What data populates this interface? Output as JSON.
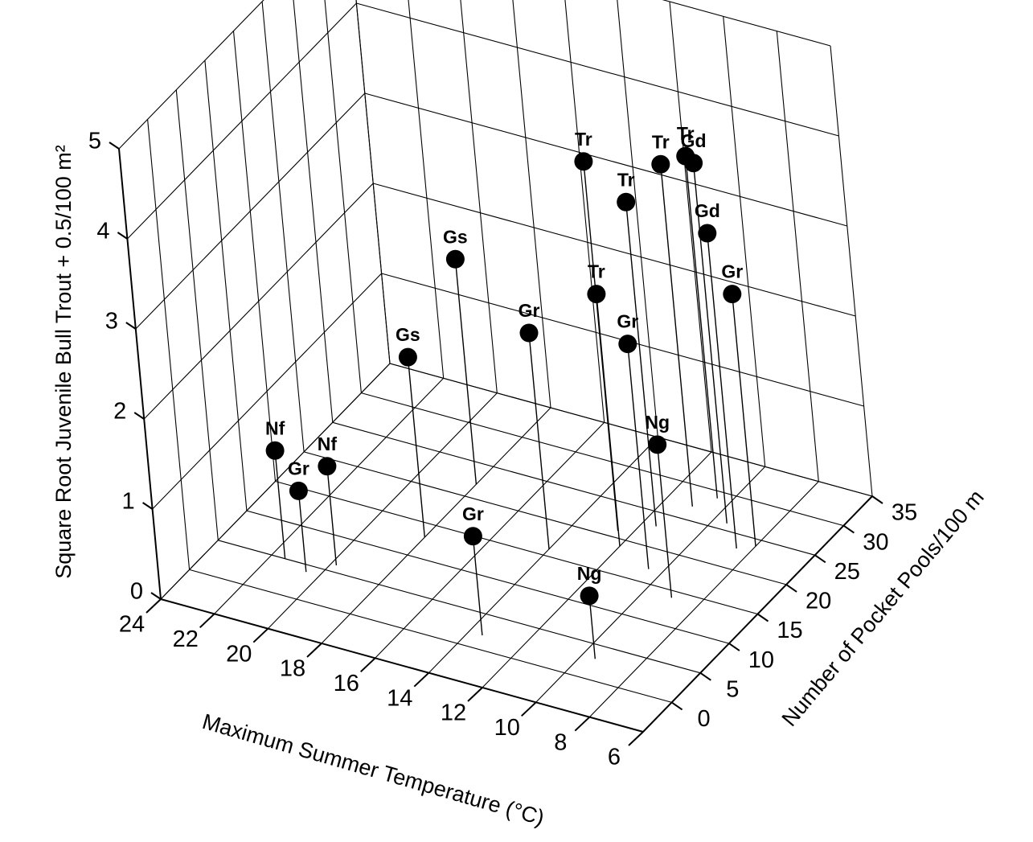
{
  "chart_data": {
    "type": "scatter3d",
    "x_axis": {
      "label": "Maximum Summer Temperature (°C)",
      "range": [
        24,
        6
      ],
      "ticks": [
        24,
        22,
        20,
        18,
        16,
        14,
        12,
        10,
        8,
        6
      ]
    },
    "y_axis": {
      "label": "Number of Pocket Pools/100 m",
      "range": [
        -5,
        35
      ],
      "ticks": [
        0,
        5,
        10,
        15,
        20,
        25,
        30,
        35
      ]
    },
    "z_axis": {
      "label": "Square Root Juvenile Bull Trout + 0.5/100 m²",
      "range": [
        0,
        5
      ],
      "ticks": [
        0,
        1,
        2,
        3,
        4,
        5
      ]
    },
    "grid": true,
    "points": [
      {
        "label": "Nf",
        "temperature": 21.5,
        "pools": 5,
        "density": 1.2
      },
      {
        "label": "Nf",
        "temperature": 19.8,
        "pools": 6,
        "density": 1.1
      },
      {
        "label": "Gr",
        "temperature": 20.5,
        "pools": 4,
        "density": 0.9
      },
      {
        "label": "Gr",
        "temperature": 13.5,
        "pools": 2,
        "density": 1.1
      },
      {
        "label": "Gs",
        "temperature": 18,
        "pools": 13,
        "density": 2.0
      },
      {
        "label": "Gs",
        "temperature": 18,
        "pools": 22,
        "density": 2.5
      },
      {
        "label": "Gr",
        "temperature": 14,
        "pools": 16,
        "density": 2.4
      },
      {
        "label": "Tr",
        "temperature": 12,
        "pools": 19,
        "density": 2.8
      },
      {
        "label": "Tr",
        "temperature": 12.5,
        "pools": 21,
        "density": 4.1
      },
      {
        "label": "Tr",
        "temperature": 11.5,
        "pools": 23,
        "density": 3.6
      },
      {
        "label": "Tr",
        "temperature": 11,
        "pools": 27,
        "density": 3.8
      },
      {
        "label": "Tr",
        "temperature": 10.5,
        "pools": 29,
        "density": 3.8
      },
      {
        "label": "Gd",
        "temperature": 9.5,
        "pools": 26,
        "density": 4.0
      },
      {
        "label": "Gd",
        "temperature": 8.5,
        "pools": 23,
        "density": 3.5
      },
      {
        "label": "Gr",
        "temperature": 8,
        "pools": 24,
        "density": 2.8
      },
      {
        "label": "Gr",
        "temperature": 10.5,
        "pools": 17,
        "density": 2.5
      },
      {
        "label": "Ng",
        "temperature": 9,
        "pools": 14,
        "density": 1.7
      },
      {
        "label": "Ng",
        "temperature": 9.5,
        "pools": 3,
        "density": 0.7
      }
    ]
  }
}
